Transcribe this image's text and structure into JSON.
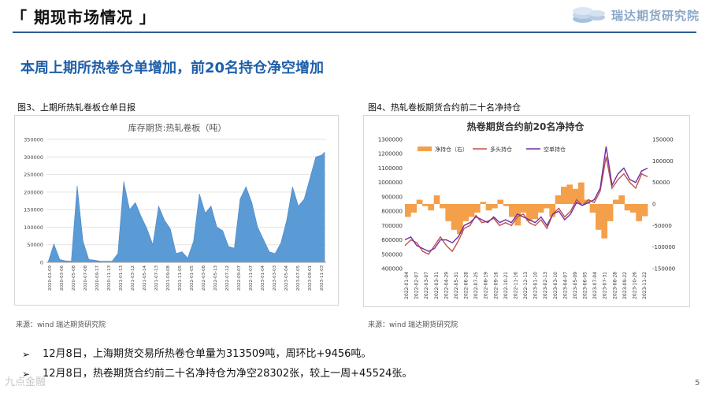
{
  "header": {
    "title": "「 期现市场情况 」",
    "brand": "瑞达期货研究院"
  },
  "subtitle": "本周上期所热卷仓单增加，前20名持仓净空增加",
  "figures": {
    "fig3_label": "图3、上期所热轧卷板仓单日报",
    "fig4_label": "图4、热轧卷板期货合约前二十名净持仓",
    "fig3_source": "来源：wind   瑞达期货研究院",
    "fig4_source": "来源：wind   瑞达期货研究院"
  },
  "bullets": [
    "12月8日，上海期货交易所热卷仓单量为313509吨，周环比+9456吨。",
    "12月8日，热卷期货合约前二十名净持仓为净空28302张，较上一周+45524张。"
  ],
  "watermark": "九点金融",
  "page_number": "5",
  "colors": {
    "accent": "#1f5fa8",
    "bar_blue": "#5b9bd5",
    "orange": "#f4a04b",
    "red": "#c0504d",
    "purple": "#7030a0"
  },
  "chart_data": [
    {
      "type": "area",
      "title": "库存期货:热轧卷板（吨）",
      "ylim": [
        0,
        350000
      ],
      "yticks": [
        "350000",
        "300000",
        "250000",
        "200000",
        "150000",
        "100000",
        "50000",
        "0"
      ],
      "xticks": [
        "2020-01-09",
        "2020-03-06",
        "2020-05-08",
        "2020-07-08",
        "2020-09-17",
        "2020-11-13",
        "2021-01-13",
        "2021-03-12",
        "2021-05-14",
        "2021-07-13",
        "2021-09-08",
        "2021-11-05",
        "2022-01-05",
        "2022-03-08",
        "2022-05-13",
        "2022-07-12",
        "2022-09-07",
        "2022-11-07",
        "2023-01-04",
        "2023-03-03",
        "2023-05-04",
        "2023-07-05",
        "2023-09-01",
        "2023-11-03"
      ],
      "series": [
        {
          "name": "库存期货:热轧卷板",
          "x_index": [
            0,
            2,
            4,
            6,
            8,
            10,
            12,
            14,
            16,
            18,
            20,
            22,
            24,
            26,
            28,
            30,
            32,
            34,
            36,
            38,
            40,
            42,
            44,
            46,
            48,
            50,
            52,
            54,
            56,
            58,
            60,
            62,
            64,
            66,
            68,
            70,
            72,
            74,
            76,
            78,
            80,
            82,
            84,
            86,
            88,
            90,
            92,
            94,
            95
          ],
          "values": [
            0,
            52000,
            8000,
            4000,
            3000,
            218000,
            60000,
            8000,
            6000,
            3000,
            3000,
            3000,
            25000,
            230000,
            150000,
            170000,
            130000,
            95000,
            50000,
            160000,
            120000,
            95000,
            25000,
            30000,
            12000,
            60000,
            195000,
            140000,
            160000,
            100000,
            90000,
            45000,
            40000,
            180000,
            215000,
            170000,
            100000,
            65000,
            30000,
            25000,
            55000,
            120000,
            215000,
            160000,
            180000,
            240000,
            300000,
            305000,
            313509
          ]
        }
      ]
    },
    {
      "type": "line",
      "title": "热卷期货合约前20名净持仓",
      "ylim_left": [
        400000,
        1300000
      ],
      "ylim_right": [
        -150000,
        150000
      ],
      "yticks_left": [
        "1300000",
        "1200000",
        "1100000",
        "1000000",
        "900000",
        "800000",
        "700000",
        "600000",
        "500000",
        "400000"
      ],
      "yticks_right": [
        "150000",
        "100000",
        "50000",
        "0",
        "-50000",
        "-100000",
        "-150000"
      ],
      "xticks": [
        "2022-01-04",
        "2022-02-07",
        "2022-03-07",
        "2022-03-31",
        "2022-04-29",
        "2022-05-31",
        "2022-06-28",
        "2022-07-25",
        "2022-08-19",
        "2022-09-16",
        "2022-10-21",
        "2022-11-16",
        "2022-12-13",
        "2023-01-10",
        "2023-02-13",
        "2023-03-10",
        "2023-04-07",
        "2023-05-09",
        "2023-06-05",
        "2023-07-04",
        "2023-07-31",
        "2023-08-28",
        "2023-09-22",
        "2023-10-26",
        "2023-11-22"
      ],
      "legend": [
        "净持仓（右）",
        "多头持仓",
        "空单持仓"
      ],
      "series": [
        {
          "name": "净持仓（右）",
          "axis": "right",
          "values": [
            -30000,
            -20000,
            10000,
            -5000,
            -15000,
            20000,
            -10000,
            -40000,
            -60000,
            -70000,
            -40000,
            -30000,
            -20000,
            5000,
            -15000,
            -10000,
            10000,
            -5000,
            -30000,
            -50000,
            -20000,
            -40000,
            -35000,
            -20000,
            -10000,
            -30000,
            20000,
            40000,
            45000,
            35000,
            50000,
            10000,
            -20000,
            -60000,
            -80000,
            -40000,
            10000,
            20000,
            -15000,
            -20000,
            -40000,
            -28302
          ]
        },
        {
          "name": "多头持仓",
          "axis": "left",
          "values": [
            560000,
            600000,
            580000,
            520000,
            500000,
            560000,
            620000,
            560000,
            520000,
            590000,
            680000,
            700000,
            770000,
            720000,
            730000,
            750000,
            700000,
            720000,
            700000,
            760000,
            780000,
            720000,
            700000,
            740000,
            680000,
            780000,
            820000,
            760000,
            800000,
            880000,
            840000,
            880000,
            860000,
            940000,
            1180000,
            960000,
            1020000,
            1060000,
            1000000,
            960000,
            1060000,
            1040000
          ]
        },
        {
          "name": "空单持仓",
          "axis": "left",
          "values": [
            600000,
            620000,
            560000,
            540000,
            520000,
            540000,
            600000,
            600000,
            580000,
            620000,
            700000,
            720000,
            760000,
            740000,
            720000,
            760000,
            720000,
            740000,
            720000,
            780000,
            760000,
            740000,
            720000,
            760000,
            700000,
            780000,
            800000,
            740000,
            780000,
            860000,
            840000,
            860000,
            880000,
            960000,
            1250000,
            980000,
            1060000,
            1100000,
            1020000,
            1000000,
            1080000,
            1100000
          ]
        }
      ]
    }
  ]
}
